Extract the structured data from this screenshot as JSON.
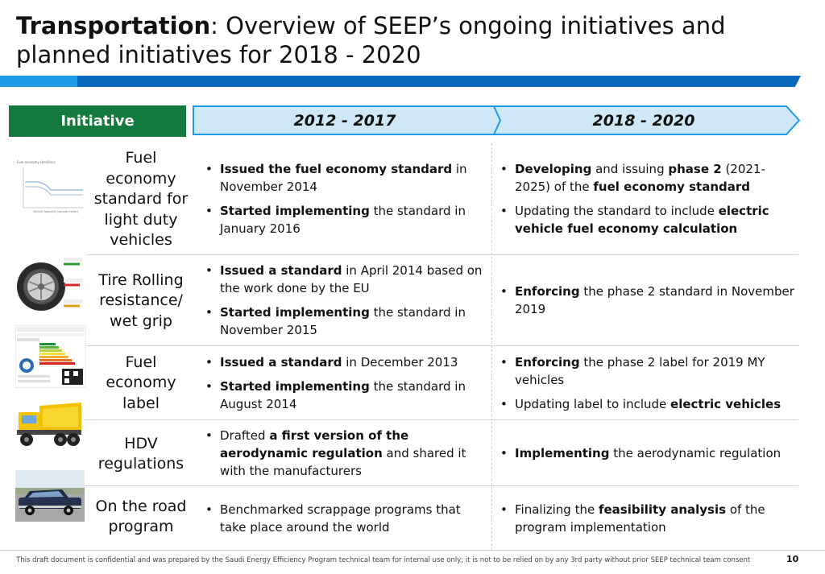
{
  "title": {
    "bold": "Transportation",
    "rest": ": Overview of SEEP’s ongoing initiatives and planned initiatives for 2018 - 2020"
  },
  "header": {
    "initiative": "Initiative",
    "period1": "2012 - 2017",
    "period2": "2018 - 2020"
  },
  "colors": {
    "initiative_header": "#157a3d",
    "chevron_fill": "#cfe8f8",
    "chevron_stroke": "#1e9be8",
    "band_light": "#1e9be8",
    "band_dark": "#0868bd"
  },
  "rows": [
    {
      "label": "Fuel economy standard for light duty vehicles",
      "image": "fuel-economy-chart-image",
      "p1": [
        [
          {
            "t": "Issued the fuel economy standard",
            "b": true
          },
          {
            "t": " in November 2014",
            "b": false
          }
        ],
        [
          {
            "t": "Started implementing",
            "b": true
          },
          {
            "t": " the standard in January 2016",
            "b": false
          }
        ]
      ],
      "p2": [
        [
          {
            "t": "Developing",
            "b": true
          },
          {
            "t": " and issuing ",
            "b": false
          },
          {
            "t": "phase 2",
            "b": true
          },
          {
            "t": " (2021-2025) of the ",
            "b": false
          },
          {
            "t": "fuel economy standard",
            "b": true
          }
        ],
        [
          {
            "t": "Updating the standard to include ",
            "b": false
          },
          {
            "t": "electric vehicle fuel economy calculation",
            "b": true
          }
        ]
      ]
    },
    {
      "label": "Tire Rolling resistance/ wet grip",
      "image": "tire-image",
      "p1": [
        [
          {
            "t": "Issued a standard",
            "b": true
          },
          {
            "t": " in April 2014 based on the work done by the EU",
            "b": false
          }
        ],
        [
          {
            "t": "Started implementing",
            "b": true
          },
          {
            "t": " the standard in November 2015",
            "b": false
          }
        ]
      ],
      "p2": [
        [
          {
            "t": "Enforcing",
            "b": true
          },
          {
            "t": " the phase 2 standard in November 2019",
            "b": false
          }
        ]
      ]
    },
    {
      "label": "Fuel economy label",
      "image": "fuel-economy-label-image",
      "p1": [
        [
          {
            "t": "Issued a standard",
            "b": true
          },
          {
            "t": " in December 2013",
            "b": false
          }
        ],
        [
          {
            "t": "Started implementing",
            "b": true
          },
          {
            "t": " the standard in August 2014",
            "b": false
          }
        ]
      ],
      "p2": [
        [
          {
            "t": "Enforcing",
            "b": true
          },
          {
            "t": " the phase 2 label for 2019 MY vehicles",
            "b": false
          }
        ],
        [
          {
            "t": "Updating label to include ",
            "b": false
          },
          {
            "t": "electric vehicles",
            "b": true
          }
        ]
      ]
    },
    {
      "label": "HDV regulations",
      "image": "dump-truck-image",
      "p1": [
        [
          {
            "t": "Drafted ",
            "b": false
          },
          {
            "t": "a first version of the aerodynamic regulation",
            "b": true
          },
          {
            "t": " and shared it with the manufacturers",
            "b": false
          }
        ]
      ],
      "p2": [
        [
          {
            "t": "Implementing",
            "b": true
          },
          {
            "t": " the aerodynamic regulation",
            "b": false
          }
        ]
      ]
    },
    {
      "label": "On the road program",
      "image": "old-car-image",
      "p1": [
        [
          {
            "t": "Benchmarked scrappage programs that take place around the world",
            "b": false
          }
        ]
      ],
      "p2": [
        [
          {
            "t": "Finalizing the ",
            "b": false
          },
          {
            "t": "feasibility analysis",
            "b": true
          },
          {
            "t": " of the program implementation",
            "b": false
          }
        ]
      ]
    }
  ],
  "footer": {
    "disclaimer": "This draft document is confidential and was prepared by the Saudi Energy Efficiency Program technical team for internal use only; it is not to be relied on by any 3rd party without prior SEEP technical team consent",
    "page": "10"
  }
}
